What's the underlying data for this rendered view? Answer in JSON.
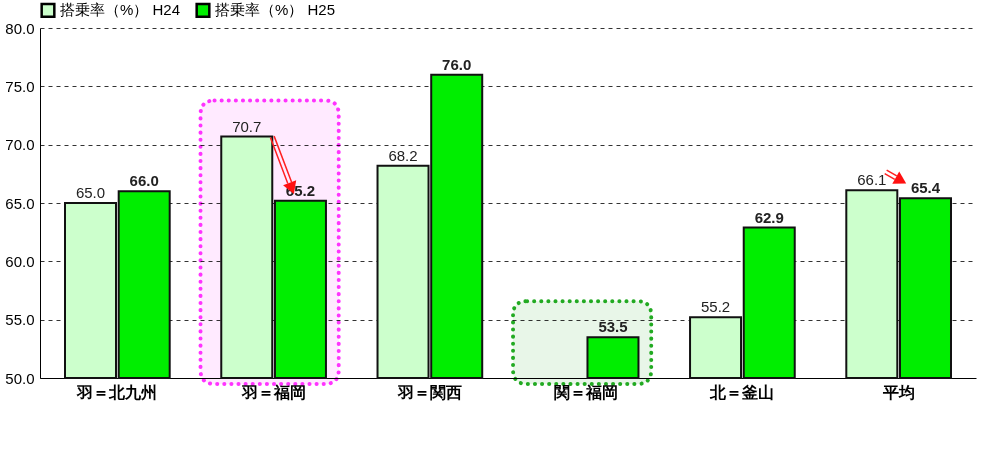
{
  "chart_data": {
    "type": "bar",
    "categories": [
      "羽＝北九州",
      "羽＝福岡",
      "羽＝関西",
      "関＝福岡",
      "北＝釜山",
      "平均"
    ],
    "series": [
      {
        "name": "搭乗率（%） H24",
        "color": "#ccffcc",
        "values": [
          65.0,
          70.7,
          68.2,
          null,
          55.2,
          66.1
        ],
        "value_labels": [
          "65.0",
          "70.7",
          "68.2",
          null,
          "55.2",
          "66.1"
        ]
      },
      {
        "name": "搭乗率（%） H25",
        "color": "#00ee00",
        "values": [
          66.0,
          65.2,
          76.0,
          53.5,
          62.9,
          65.4
        ],
        "value_labels": [
          "66.0",
          "65.2",
          "76.0",
          "53.5",
          "62.9",
          "65.4"
        ]
      }
    ],
    "ylim": [
      50,
      80
    ],
    "yticks": [
      {
        "value": 50,
        "label": "50.0"
      },
      {
        "value": 55,
        "label": "55.0"
      },
      {
        "value": 60,
        "label": "60.0"
      },
      {
        "value": 65,
        "label": "65.0"
      },
      {
        "value": 70,
        "label": "70.0"
      },
      {
        "value": 75,
        "label": "75.0"
      },
      {
        "value": 80,
        "label": "80.0"
      }
    ],
    "bands": [
      {
        "axis": "x",
        "from": "羽＝福岡",
        "to": "羽＝福岡",
        "color": "#ff33ff"
      },
      {
        "axis": "x",
        "from": "関＝福岡",
        "to": "関＝福岡",
        "color": "#22aa22"
      }
    ],
    "grid": "y",
    "legend": "top"
  }
}
